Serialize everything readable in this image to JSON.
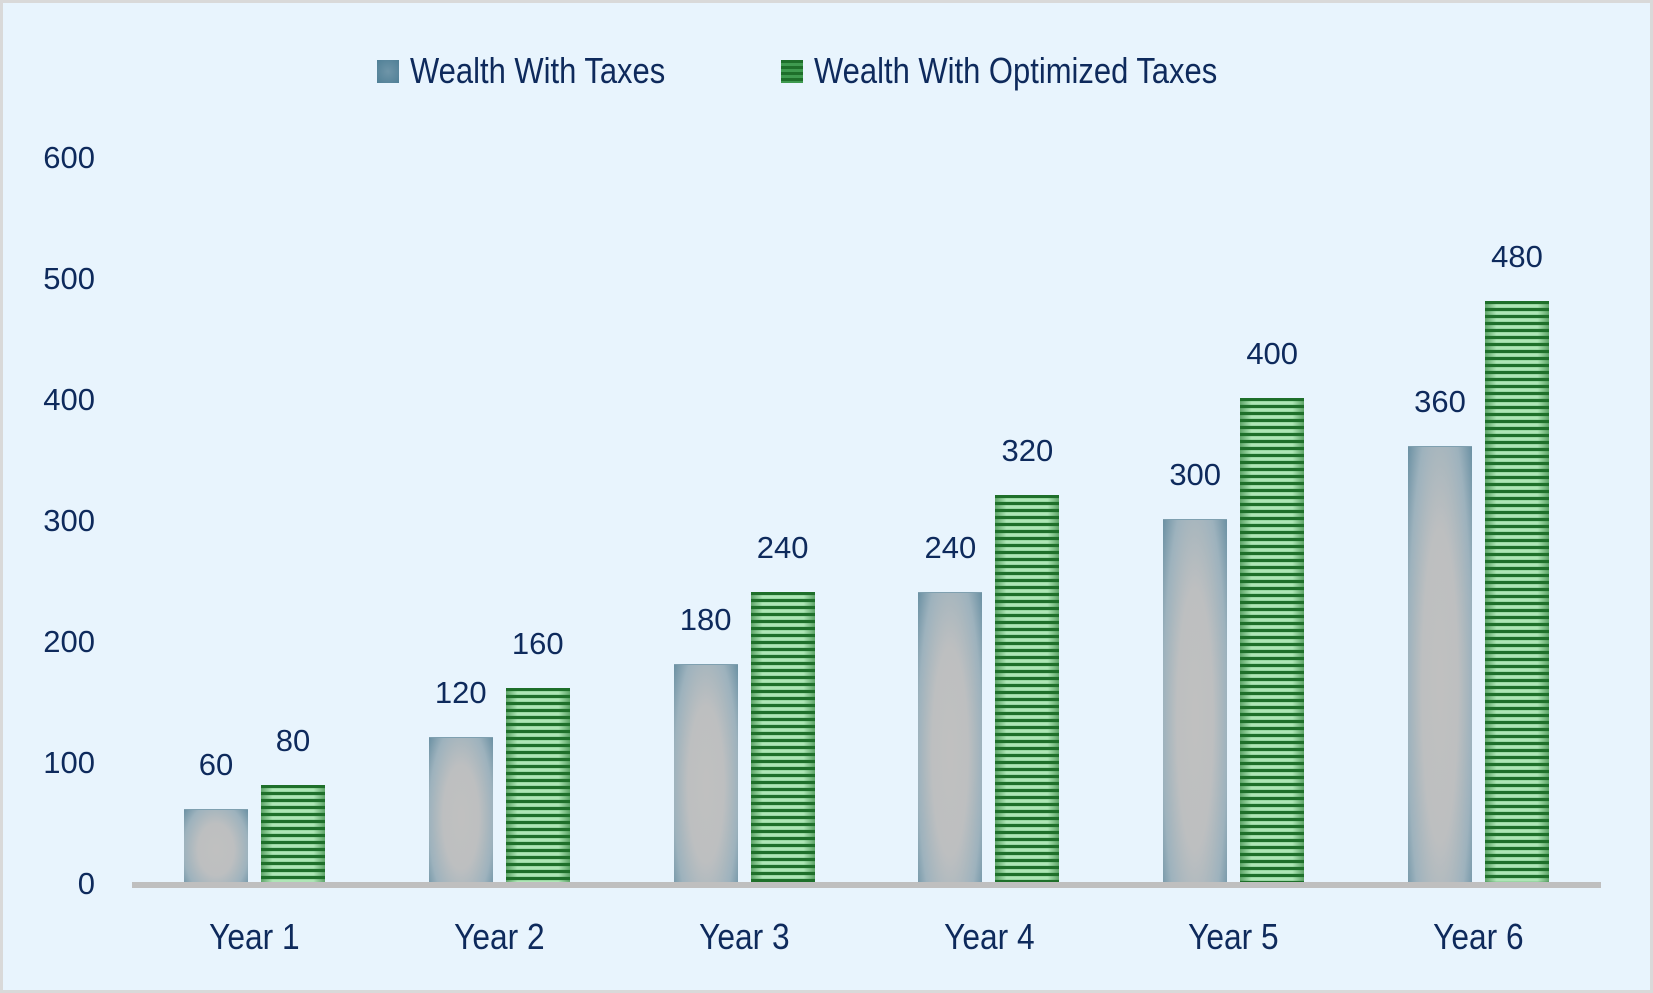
{
  "chart_data": {
    "type": "bar",
    "title": "",
    "xlabel": "",
    "ylabel": "",
    "categories": [
      "Year 1",
      "Year 2",
      "Year 3",
      "Year 4",
      "Year 5",
      "Year 6"
    ],
    "series": [
      {
        "name": "Wealth With Taxes",
        "values": [
          60,
          120,
          180,
          240,
          300,
          360
        ],
        "color": "#4f7f96",
        "fill": "gradient-grey-blue"
      },
      {
        "name": "Wealth With Optimized Taxes",
        "values": [
          80,
          160,
          240,
          320,
          400,
          480
        ],
        "color": "#1e6f2a",
        "fill": "horizontal-stripes-green"
      }
    ],
    "ylim": [
      0,
      600
    ],
    "yticks": [
      0,
      100,
      200,
      300,
      400,
      500,
      600
    ],
    "grid": false,
    "legend_position": "top",
    "data_labels": true
  },
  "legend": {
    "items": [
      {
        "label": "Wealth With Taxes"
      },
      {
        "label": "Wealth With Optimized Taxes"
      }
    ]
  },
  "colors": {
    "background": "#e8f4fd",
    "border": "#d9d9d9",
    "text": "#0e2a5c",
    "axis": "#bfbfbf"
  }
}
